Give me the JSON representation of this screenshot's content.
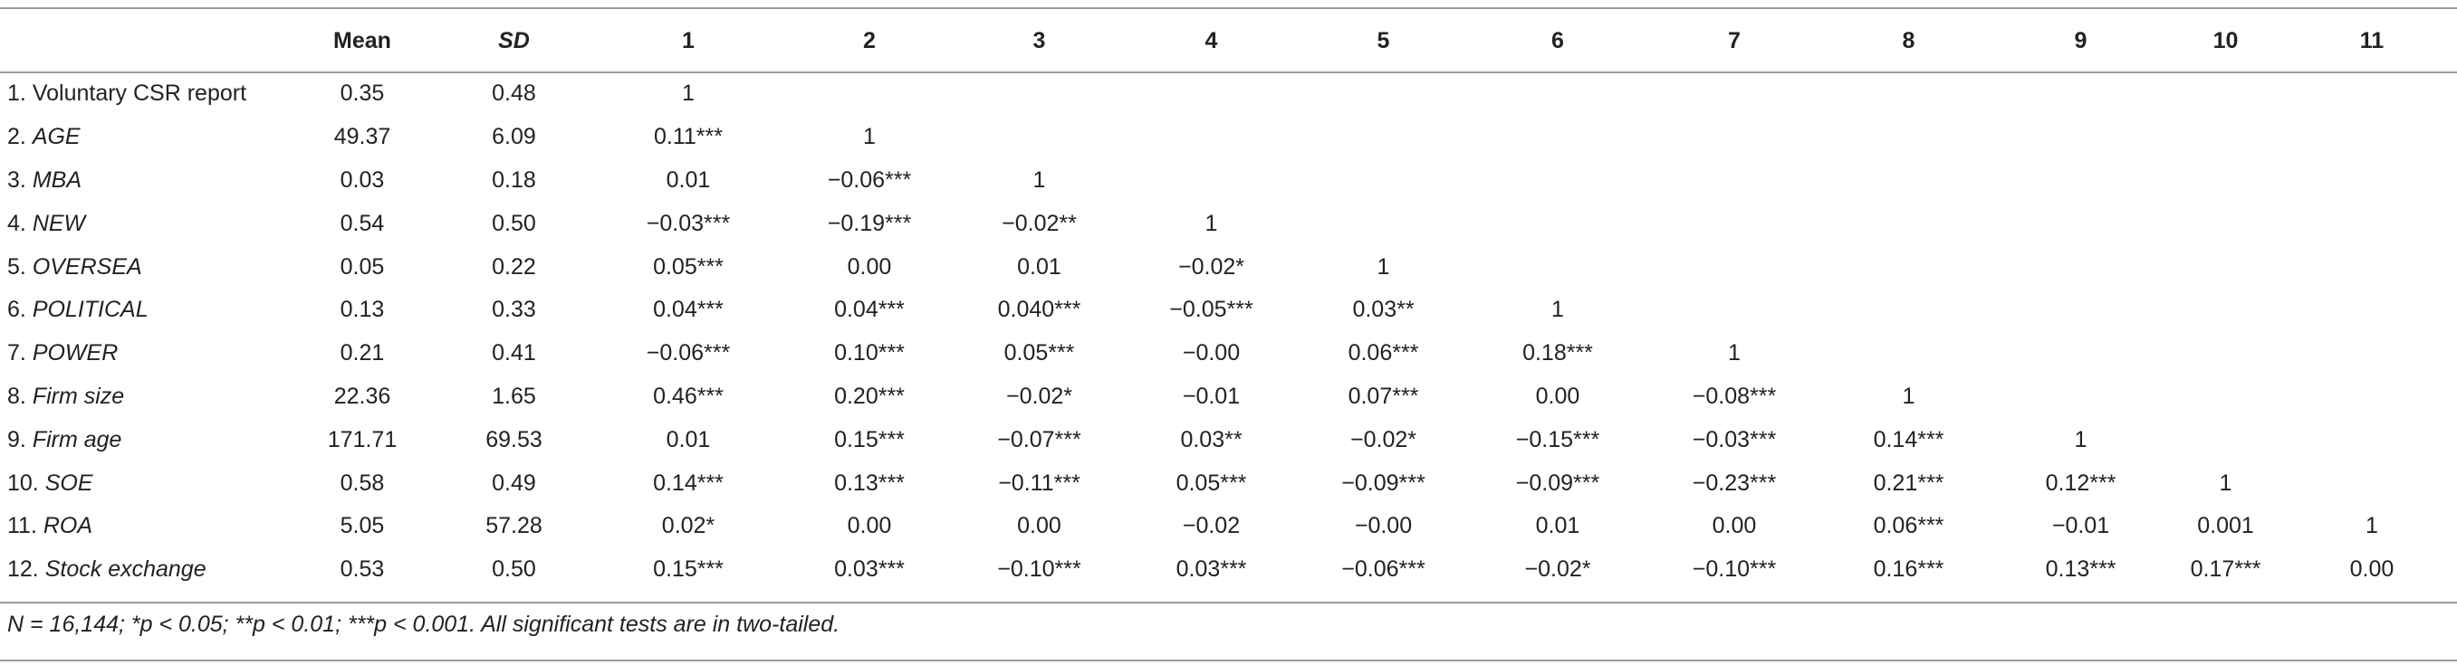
{
  "table": {
    "headers": [
      "",
      "Mean",
      "SD",
      "1",
      "2",
      "3",
      "4",
      "5",
      "6",
      "7",
      "8",
      "9",
      "10",
      "11"
    ],
    "rows": [
      {
        "num": "1.",
        "name": "Voluntary CSR report",
        "italic": false,
        "mean": "0.35",
        "sd": "0.48",
        "cells": [
          "1",
          "",
          "",
          "",
          "",
          "",
          "",
          "",
          "",
          "",
          ""
        ]
      },
      {
        "num": "2.",
        "name": "AGE",
        "italic": true,
        "mean": "49.37",
        "sd": "6.09",
        "cells": [
          "0.11***",
          "1",
          "",
          "",
          "",
          "",
          "",
          "",
          "",
          "",
          ""
        ]
      },
      {
        "num": "3.",
        "name": "MBA",
        "italic": true,
        "mean": "0.03",
        "sd": "0.18",
        "cells": [
          "0.01",
          "−0.06***",
          "1",
          "",
          "",
          "",
          "",
          "",
          "",
          "",
          ""
        ]
      },
      {
        "num": "4.",
        "name": "NEW",
        "italic": true,
        "mean": "0.54",
        "sd": "0.50",
        "cells": [
          "−0.03***",
          "−0.19***",
          "−0.02**",
          "1",
          "",
          "",
          "",
          "",
          "",
          "",
          ""
        ]
      },
      {
        "num": "5.",
        "name": "OVERSEA",
        "italic": true,
        "mean": "0.05",
        "sd": "0.22",
        "cells": [
          "0.05***",
          "0.00",
          "0.01",
          "−0.02*",
          "1",
          "",
          "",
          "",
          "",
          "",
          ""
        ]
      },
      {
        "num": "6.",
        "name": "POLITICAL",
        "italic": true,
        "mean": "0.13",
        "sd": "0.33",
        "cells": [
          "0.04***",
          "0.04***",
          "0.040***",
          "−0.05***",
          "0.03**",
          "1",
          "",
          "",
          "",
          "",
          ""
        ]
      },
      {
        "num": "7.",
        "name": "POWER",
        "italic": true,
        "mean": "0.21",
        "sd": "0.41",
        "cells": [
          "−0.06***",
          "0.10***",
          "0.05***",
          "−0.00",
          "0.06***",
          "0.18***",
          "1",
          "",
          "",
          "",
          ""
        ]
      },
      {
        "num": "8.",
        "name": "Firm size",
        "italic": true,
        "mean": "22.36",
        "sd": "1.65",
        "cells": [
          "0.46***",
          "0.20***",
          "−0.02*",
          "−0.01",
          "0.07***",
          "0.00",
          "−0.08***",
          "1",
          "",
          "",
          ""
        ]
      },
      {
        "num": "9.",
        "name": "Firm age",
        "italic": true,
        "mean": "171.71",
        "sd": "69.53",
        "cells": [
          "0.01",
          "0.15***",
          "−0.07***",
          "0.03**",
          "−0.02*",
          "−0.15***",
          "−0.03***",
          "0.14***",
          "1",
          "",
          ""
        ]
      },
      {
        "num": "10.",
        "name": "SOE",
        "italic": true,
        "mean": "0.58",
        "sd": "0.49",
        "cells": [
          "0.14***",
          "0.13***",
          "−0.11***",
          "0.05***",
          "−0.09***",
          "−0.09***",
          "−0.23***",
          "0.21***",
          "0.12***",
          "1",
          ""
        ]
      },
      {
        "num": "11.",
        "name": "ROA",
        "italic": true,
        "mean": "5.05",
        "sd": "57.28",
        "cells": [
          "0.02*",
          "0.00",
          "0.00",
          "−0.02",
          "−0.00",
          "0.01",
          "0.00",
          "0.06***",
          "−0.01",
          "0.001",
          "1"
        ]
      },
      {
        "num": "12.",
        "name": "Stock exchange",
        "italic": true,
        "mean": "0.53",
        "sd": "0.50",
        "cells": [
          "0.15***",
          "0.03***",
          "−0.10***",
          "0.03***",
          "−0.06***",
          "−0.02*",
          "−0.10***",
          "0.16***",
          "0.13***",
          "0.17***",
          "0.00"
        ]
      }
    ]
  },
  "note": "N = 16,144; *p < 0.05; **p < 0.01; ***p < 0.001. All significant tests are in two-tailed."
}
